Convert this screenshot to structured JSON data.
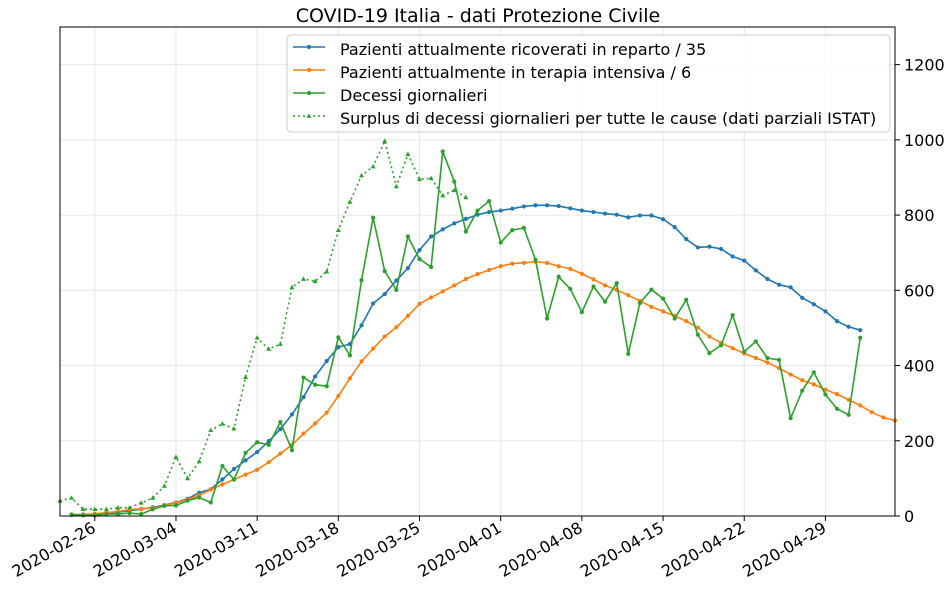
{
  "chart_data": {
    "type": "line",
    "title": "COVID-19 Italia - dati Protezione Civile",
    "xlabel": "",
    "ylabel": "",
    "ylim": [
      0,
      1300
    ],
    "y_axis_position": "right",
    "y_ticks": [
      0,
      200,
      400,
      600,
      800,
      1000,
      1200
    ],
    "y_tick_labels": [
      "0",
      "200",
      "400",
      "600",
      "800",
      "1000",
      "1200"
    ],
    "x_ticks": [
      "2020-02-26",
      "2020-03-04",
      "2020-03-11",
      "2020-03-18",
      "2020-03-25",
      "2020-04-01",
      "2020-04-08",
      "2020-04-15",
      "2020-04-22",
      "2020-04-29"
    ],
    "x_tick_labels": [
      "2020-02-26",
      "2020-03-04",
      "2020-03-11",
      "2020-03-18",
      "2020-03-25",
      "2020-04-01",
      "2020-04-08",
      "2020-04-15",
      "2020-04-22",
      "2020-04-29"
    ],
    "xlim": [
      "2020-02-23",
      "2020-05-05"
    ],
    "grid": true,
    "legend_position": "top-right",
    "series": [
      {
        "name": "Pazienti attualmente ricoverati in reparto / 35",
        "color": "#1f77b4",
        "style": "solid",
        "marker": "circle",
        "x_start": "2020-02-24",
        "values": [
          3,
          4,
          5,
          7,
          10,
          14,
          18,
          23,
          29,
          36,
          46,
          62,
          71,
          97,
          125,
          148,
          170,
          199,
          231,
          270,
          316,
          371,
          412,
          449,
          457,
          507,
          565,
          590,
          626,
          659,
          707,
          743,
          762,
          778,
          790,
          801,
          808,
          812,
          817,
          823,
          826,
          826,
          824,
          818,
          812,
          808,
          804,
          801,
          794,
          799,
          799,
          789,
          768,
          736,
          714,
          716,
          710,
          690,
          679,
          653,
          630,
          615,
          608,
          580,
          563,
          544,
          518,
          503,
          494
        ]
      },
      {
        "name": "Pazienti attualmente in terapia intensiva / 6",
        "color": "#ff7f0e",
        "style": "solid",
        "marker": "circle",
        "x_start": "2020-02-24",
        "values": [
          4,
          4,
          6,
          9,
          12,
          17,
          19,
          21,
          28,
          35,
          44,
          55,
          70,
          84,
          97,
          110,
          123,
          143,
          166,
          189,
          219,
          246,
          275,
          319,
          366,
          411,
          445,
          477,
          502,
          532,
          564,
          581,
          597,
          613,
          630,
          643,
          654,
          664,
          671,
          673,
          676,
          673,
          664,
          657,
          644,
          629,
          613,
          601,
          587,
          572,
          556,
          544,
          532,
          518,
          501,
          477,
          460,
          446,
          432,
          420,
          408,
          393,
          376,
          361,
          350,
          336,
          324,
          309,
          294,
          276,
          262,
          254
        ]
      },
      {
        "name": "Decessi giornalieri",
        "color": "#2ca02c",
        "style": "solid",
        "marker": "circle",
        "x_start": "2020-02-24",
        "values": [
          4,
          2,
          2,
          5,
          5,
          8,
          5,
          18,
          27,
          28,
          41,
          49,
          36,
          133,
          97,
          168,
          196,
          189,
          250,
          175,
          368,
          349,
          345,
          475,
          427,
          627,
          793,
          651,
          601,
          743,
          683,
          662,
          969,
          889,
          756,
          812,
          837,
          727,
          760,
          766,
          681,
          525,
          636,
          604,
          542,
          610,
          570,
          619,
          431,
          566,
          602,
          578,
          525,
          575,
          482,
          433,
          454,
          534,
          437,
          464,
          420,
          415,
          260,
          333,
          382,
          323,
          285,
          269,
          474
        ]
      },
      {
        "name": "Surplus di decessi giornalieri per tutte le cause (dati parziali ISTAT)",
        "color": "#2ca02c",
        "style": "dotted",
        "marker": "triangle",
        "x_start": "2020-02-23",
        "values": [
          40,
          48,
          18,
          18,
          18,
          22,
          22,
          35,
          48,
          80,
          157,
          100,
          145,
          228,
          245,
          232,
          369,
          474,
          444,
          457,
          608,
          630,
          624,
          650,
          760,
          835,
          905,
          929,
          997,
          876,
          962,
          895,
          898,
          852,
          866,
          847
        ]
      }
    ]
  }
}
